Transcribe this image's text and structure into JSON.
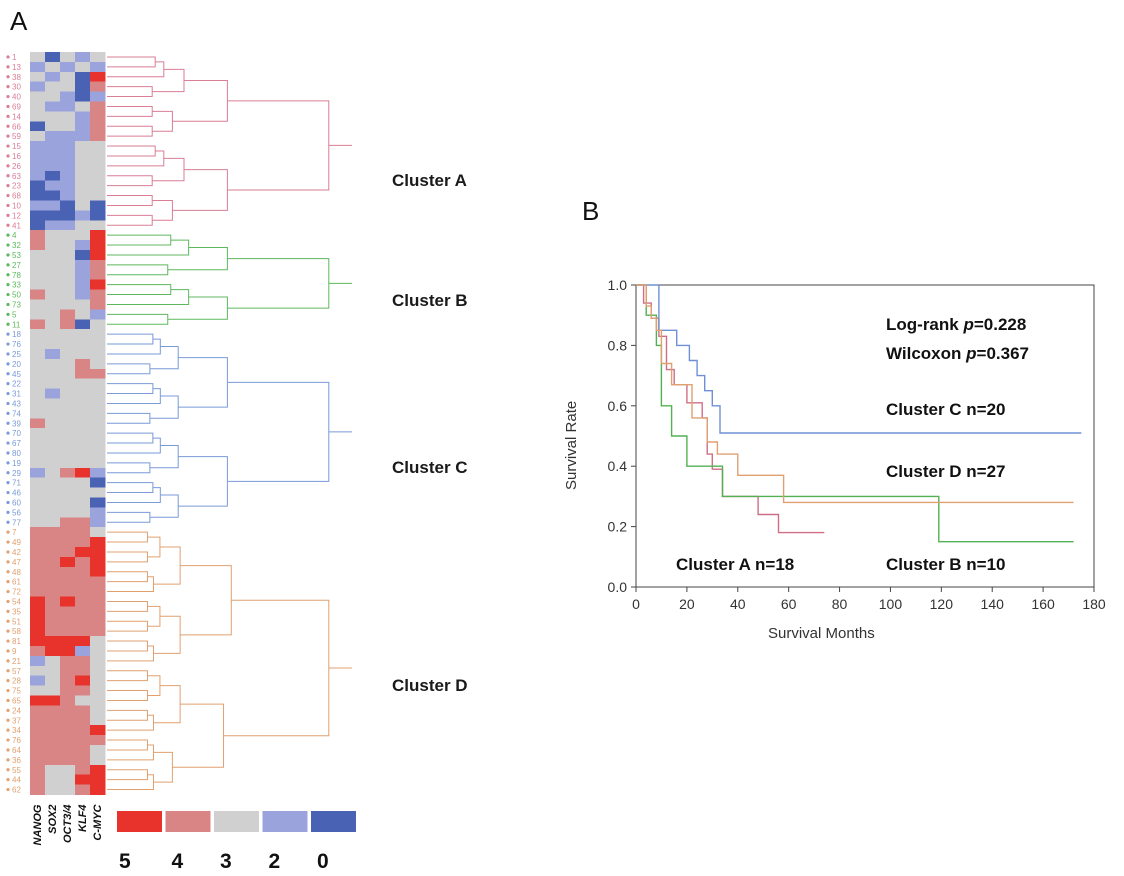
{
  "panels": {
    "a_letter": "A",
    "b_letter": "B"
  },
  "colors": {
    "level_5": "#e8322c",
    "level_4": "#d98586",
    "level_3": "#d0d0d0",
    "level_2": "#9aa3dc",
    "level_0": "#4a62b4",
    "cluster_A": "#d97e95",
    "cluster_B": "#5db85d",
    "cluster_C": "#7a9ad8",
    "cluster_D": "#e0a070"
  },
  "genes": [
    "NANOG",
    "SOX2",
    "OCT3/4",
    "KLF4",
    "C-MYC"
  ],
  "heatmap_legend": {
    "levels": [
      "5",
      "4",
      "3",
      "2",
      "0"
    ],
    "colors": [
      "#e8322c",
      "#d98586",
      "#d0d0d0",
      "#9aa3dc",
      "#4a62b4"
    ]
  },
  "clusters": [
    {
      "name": "Cluster A",
      "key": "A",
      "color": "#d97e95",
      "rows": [
        "1",
        "13",
        "38",
        "30",
        "40",
        "69",
        "14",
        "66",
        "59",
        "15",
        "16",
        "26",
        "63",
        "23",
        "68",
        "10",
        "12",
        "41"
      ]
    },
    {
      "name": "Cluster B",
      "key": "B",
      "color": "#5db85d",
      "rows": [
        "4",
        "32",
        "53",
        "27",
        "78",
        "33",
        "50",
        "73",
        "5",
        "11"
      ]
    },
    {
      "name": "Cluster C",
      "key": "C",
      "color": "#7a9ad8",
      "rows": [
        "18",
        "76",
        "25",
        "20",
        "45",
        "22",
        "31",
        "43",
        "74",
        "39",
        "70",
        "67",
        "80",
        "19",
        "29",
        "71",
        "46",
        "60",
        "56",
        "77"
      ]
    },
    {
      "name": "Cluster D",
      "key": "D",
      "color": "#e0a070",
      "rows": [
        "7",
        "49",
        "42",
        "47",
        "48",
        "61",
        "72",
        "54",
        "35",
        "51",
        "58",
        "81",
        "9",
        "21",
        "57",
        "28",
        "75",
        "65",
        "24",
        "37",
        "34",
        "76",
        "64",
        "36",
        "55",
        "44",
        "62"
      ]
    }
  ],
  "heatmap_values": [
    [
      3,
      0,
      3,
      2,
      3
    ],
    [
      2,
      3,
      2,
      3,
      2
    ],
    [
      3,
      2,
      3,
      0,
      5
    ],
    [
      2,
      3,
      3,
      0,
      4
    ],
    [
      3,
      3,
      2,
      0,
      2
    ],
    [
      3,
      2,
      2,
      3,
      4
    ],
    [
      3,
      3,
      3,
      2,
      4
    ],
    [
      0,
      3,
      3,
      2,
      4
    ],
    [
      3,
      2,
      2,
      2,
      4
    ],
    [
      2,
      2,
      2,
      3,
      3
    ],
    [
      2,
      2,
      2,
      3,
      3
    ],
    [
      2,
      2,
      2,
      3,
      3
    ],
    [
      2,
      0,
      2,
      3,
      3
    ],
    [
      0,
      2,
      2,
      3,
      3
    ],
    [
      0,
      0,
      2,
      3,
      3
    ],
    [
      2,
      2,
      0,
      3,
      0
    ],
    [
      0,
      0,
      0,
      2,
      0
    ],
    [
      0,
      2,
      2,
      3,
      3
    ],
    [
      4,
      3,
      3,
      3,
      5
    ],
    [
      4,
      3,
      3,
      2,
      5
    ],
    [
      3,
      3,
      3,
      0,
      5
    ],
    [
      3,
      3,
      3,
      2,
      4
    ],
    [
      3,
      3,
      3,
      2,
      4
    ],
    [
      3,
      3,
      3,
      2,
      5
    ],
    [
      4,
      3,
      3,
      2,
      4
    ],
    [
      3,
      3,
      3,
      3,
      4
    ],
    [
      3,
      3,
      4,
      3,
      2
    ],
    [
      4,
      3,
      4,
      0,
      3
    ],
    [
      3,
      3,
      3,
      3,
      3
    ],
    [
      3,
      3,
      3,
      3,
      3
    ],
    [
      3,
      2,
      3,
      3,
      3
    ],
    [
      3,
      3,
      3,
      4,
      3
    ],
    [
      3,
      3,
      3,
      4,
      4
    ],
    [
      3,
      3,
      3,
      3,
      3
    ],
    [
      3,
      2,
      3,
      3,
      3
    ],
    [
      3,
      3,
      3,
      3,
      3
    ],
    [
      3,
      3,
      3,
      3,
      3
    ],
    [
      4,
      3,
      3,
      3,
      3
    ],
    [
      3,
      3,
      3,
      3,
      3
    ],
    [
      3,
      3,
      3,
      3,
      3
    ],
    [
      3,
      3,
      3,
      3,
      3
    ],
    [
      3,
      3,
      3,
      3,
      3
    ],
    [
      2,
      3,
      4,
      5,
      2
    ],
    [
      3,
      3,
      3,
      3,
      0
    ],
    [
      3,
      3,
      3,
      3,
      3
    ],
    [
      3,
      3,
      3,
      3,
      0
    ],
    [
      3,
      3,
      3,
      3,
      2
    ],
    [
      3,
      3,
      4,
      4,
      2
    ],
    [
      4,
      4,
      4,
      4,
      3
    ],
    [
      4,
      4,
      4,
      4,
      5
    ],
    [
      4,
      4,
      4,
      5,
      5
    ],
    [
      4,
      4,
      5,
      4,
      5
    ],
    [
      4,
      4,
      4,
      4,
      5
    ],
    [
      4,
      4,
      4,
      4,
      4
    ],
    [
      4,
      4,
      4,
      4,
      4
    ],
    [
      5,
      4,
      5,
      4,
      4
    ],
    [
      5,
      4,
      4,
      4,
      4
    ],
    [
      5,
      4,
      4,
      4,
      4
    ],
    [
      5,
      4,
      4,
      4,
      4
    ],
    [
      5,
      5,
      5,
      5,
      3
    ],
    [
      4,
      5,
      5,
      2,
      3
    ],
    [
      2,
      3,
      4,
      4,
      3
    ],
    [
      3,
      3,
      4,
      4,
      3
    ],
    [
      2,
      3,
      4,
      5,
      3
    ],
    [
      3,
      3,
      4,
      4,
      3
    ],
    [
      5,
      5,
      4,
      3,
      3
    ],
    [
      4,
      4,
      4,
      4,
      3
    ],
    [
      4,
      4,
      4,
      4,
      3
    ],
    [
      4,
      4,
      4,
      4,
      5
    ],
    [
      4,
      4,
      4,
      4,
      4
    ],
    [
      4,
      4,
      4,
      4,
      3
    ],
    [
      4,
      4,
      4,
      4,
      3
    ],
    [
      4,
      3,
      3,
      4,
      5
    ],
    [
      4,
      3,
      3,
      5,
      5
    ],
    [
      4,
      3,
      3,
      4,
      5
    ]
  ],
  "chart_data": {
    "type": "line",
    "xlabel": "Survival Months",
    "ylabel": "Survival Rate",
    "xlim": [
      0,
      180
    ],
    "ylim": [
      0.0,
      1.0
    ],
    "x_ticks": [
      "0",
      "20",
      "40",
      "60",
      "80",
      "100",
      "120",
      "140",
      "160",
      "180"
    ],
    "y_ticks": [
      "0.0",
      "0.2",
      "0.4",
      "0.6",
      "0.8",
      "1.0"
    ],
    "grid": false,
    "annotations": {
      "logrank_prefix": "Log-rank ",
      "logrank_p": "p",
      "logrank_value": "=0.228",
      "wilcoxon_prefix": "Wilcoxon ",
      "wilcoxon_p": "p",
      "wilcoxon_value": "=0.367",
      "label_A": "Cluster A n=18",
      "label_B": "Cluster B n=10",
      "label_C": "Cluster C n=20",
      "label_D": "Cluster D n=27"
    },
    "series": [
      {
        "key": "A",
        "color": "#cf6f86",
        "points": [
          [
            0,
            1.0
          ],
          [
            3,
            1.0
          ],
          [
            3,
            0.94
          ],
          [
            6,
            0.94
          ],
          [
            6,
            0.89
          ],
          [
            9,
            0.89
          ],
          [
            9,
            0.83
          ],
          [
            12,
            0.83
          ],
          [
            12,
            0.72
          ],
          [
            15,
            0.72
          ],
          [
            15,
            0.67
          ],
          [
            20,
            0.67
          ],
          [
            20,
            0.61
          ],
          [
            26,
            0.61
          ],
          [
            26,
            0.56
          ],
          [
            28,
            0.56
          ],
          [
            28,
            0.44
          ],
          [
            30,
            0.44
          ],
          [
            30,
            0.39
          ],
          [
            34,
            0.39
          ],
          [
            34,
            0.3
          ],
          [
            48,
            0.3
          ],
          [
            48,
            0.24
          ],
          [
            56,
            0.24
          ],
          [
            56,
            0.18
          ],
          [
            74,
            0.18
          ]
        ]
      },
      {
        "key": "B",
        "color": "#53b053",
        "points": [
          [
            0,
            1.0
          ],
          [
            4,
            1.0
          ],
          [
            4,
            0.9
          ],
          [
            8,
            0.9
          ],
          [
            8,
            0.8
          ],
          [
            10,
            0.8
          ],
          [
            10,
            0.6
          ],
          [
            14,
            0.6
          ],
          [
            14,
            0.5
          ],
          [
            20,
            0.5
          ],
          [
            20,
            0.4
          ],
          [
            34,
            0.4
          ],
          [
            34,
            0.3
          ],
          [
            119,
            0.3
          ],
          [
            119,
            0.15
          ],
          [
            172,
            0.15
          ]
        ]
      },
      {
        "key": "C",
        "color": "#6f90d6",
        "points": [
          [
            0,
            1.0
          ],
          [
            9,
            1.0
          ],
          [
            9,
            0.85
          ],
          [
            16,
            0.85
          ],
          [
            16,
            0.8
          ],
          [
            21,
            0.8
          ],
          [
            21,
            0.75
          ],
          [
            24,
            0.75
          ],
          [
            24,
            0.7
          ],
          [
            27,
            0.7
          ],
          [
            27,
            0.65
          ],
          [
            30,
            0.65
          ],
          [
            30,
            0.6
          ],
          [
            33,
            0.6
          ],
          [
            33,
            0.51
          ],
          [
            175,
            0.51
          ]
        ]
      },
      {
        "key": "D",
        "color": "#e0a070",
        "points": [
          [
            0,
            1.0
          ],
          [
            4,
            1.0
          ],
          [
            4,
            0.93
          ],
          [
            6,
            0.93
          ],
          [
            6,
            0.89
          ],
          [
            8,
            0.89
          ],
          [
            8,
            0.85
          ],
          [
            10,
            0.85
          ],
          [
            10,
            0.74
          ],
          [
            14,
            0.74
          ],
          [
            14,
            0.67
          ],
          [
            22,
            0.67
          ],
          [
            22,
            0.56
          ],
          [
            28,
            0.56
          ],
          [
            28,
            0.48
          ],
          [
            32,
            0.48
          ],
          [
            32,
            0.44
          ],
          [
            40,
            0.44
          ],
          [
            40,
            0.37
          ],
          [
            58,
            0.37
          ],
          [
            58,
            0.28
          ],
          [
            172,
            0.28
          ]
        ]
      }
    ]
  }
}
